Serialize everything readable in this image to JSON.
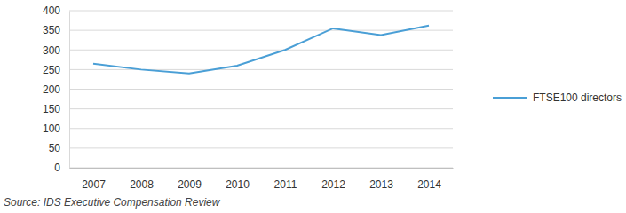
{
  "chart_data": {
    "type": "line",
    "categories": [
      "2007",
      "2008",
      "2009",
      "2010",
      "2011",
      "2012",
      "2013",
      "2014"
    ],
    "series": [
      {
        "name": "FTSE100 directors",
        "color": "#4a9fd6",
        "values": [
          265,
          250,
          240,
          260,
          300,
          355,
          338,
          362
        ],
        "marker": "none",
        "line_style": "solid"
      }
    ],
    "ylim": [
      0,
      400
    ],
    "yticks": [
      0,
      50,
      100,
      150,
      200,
      250,
      300,
      350,
      400
    ],
    "grid": true,
    "legend": "right",
    "annotations": [
      "Source: IDS Executive Compensation Review"
    ]
  }
}
